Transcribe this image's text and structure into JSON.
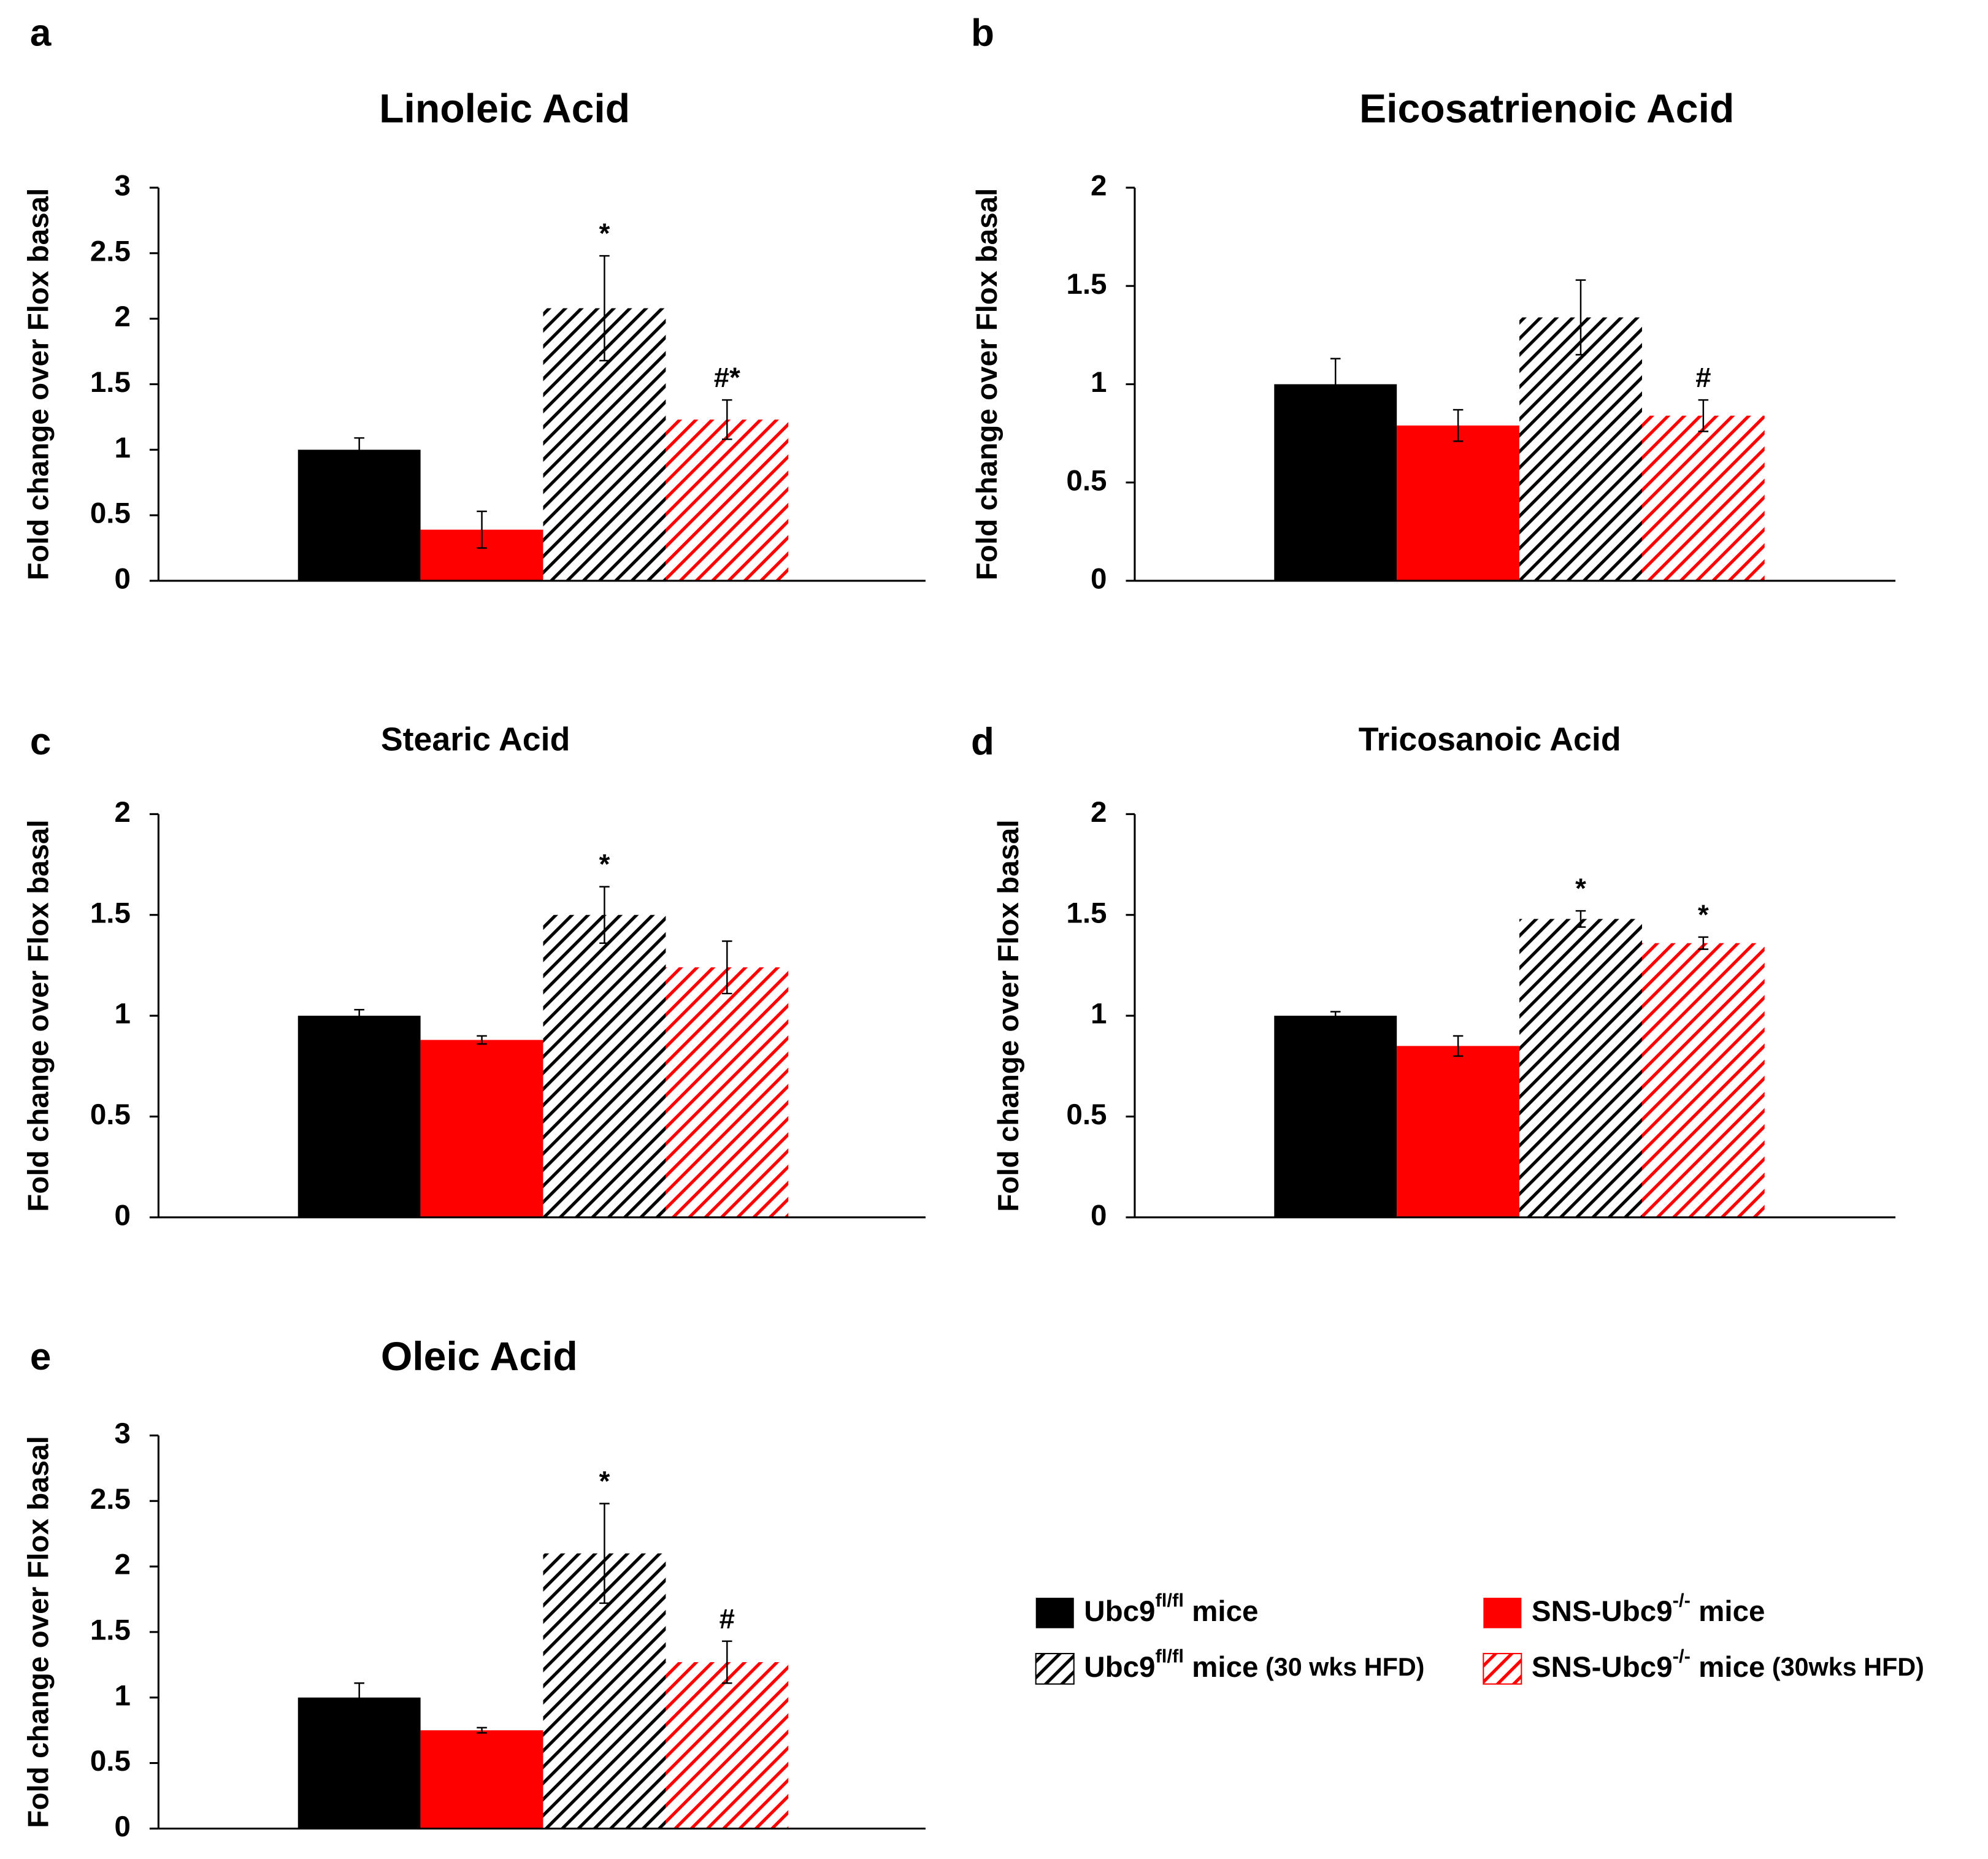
{
  "legend": {
    "entries": [
      {
        "label": "Ubc9",
        "sup": "fl/fl",
        "after": " mice",
        "color": "#000000",
        "hatched": false
      },
      {
        "label": "SNS-Ubc9",
        "sup": "-/-",
        "after": " mice",
        "color": "#ff0000",
        "hatched": false
      },
      {
        "label": "Ubc9",
        "sup": "fl/fl",
        "after": " mice",
        "note": " (30 wks HFD)",
        "color": "#000000",
        "hatched": true
      },
      {
        "label": "SNS-Ubc9",
        "sup": "-/-",
        "after": " mice",
        "note": " (30wks HFD)",
        "color": "#ff0000",
        "hatched": true
      }
    ]
  },
  "chart_data": [
    {
      "type": "bar",
      "panel": "a",
      "title": "Linoleic Acid",
      "y_label": "Fold change over Flox basal",
      "values": [
        1.0,
        0.39,
        2.08,
        1.23
      ],
      "errors": [
        0.09,
        0.14,
        0.4,
        0.15
      ],
      "annotations": [
        null,
        null,
        "*",
        "#*"
      ],
      "ylim": [
        0,
        3
      ],
      "yticks": [
        0,
        0.5,
        1,
        1.5,
        2,
        2.5,
        3
      ]
    },
    {
      "type": "bar",
      "panel": "b",
      "title": "Eicosatrienoic Acid",
      "y_label": "Fold change over Flox basal",
      "values": [
        1.0,
        0.79,
        1.34,
        0.84
      ],
      "errors": [
        0.13,
        0.08,
        0.19,
        0.08
      ],
      "annotations": [
        null,
        null,
        null,
        "#"
      ],
      "ylim": [
        0,
        2
      ],
      "yticks": [
        0,
        0.5,
        1,
        1.5,
        2
      ]
    },
    {
      "type": "bar",
      "panel": "c",
      "title": "Stearic Acid",
      "y_label": "Fold change over Flox basal",
      "values": [
        1.0,
        0.88,
        1.5,
        1.24
      ],
      "errors": [
        0.03,
        0.02,
        0.14,
        0.13
      ],
      "annotations": [
        null,
        null,
        "*",
        null
      ],
      "ylim": [
        0,
        2
      ],
      "yticks": [
        0,
        0.5,
        1,
        1.5,
        2
      ]
    },
    {
      "type": "bar",
      "panel": "d",
      "title": "Tricosanoic Acid",
      "y_label": "Fold change over Flox basal",
      "values": [
        1.0,
        0.85,
        1.48,
        1.36
      ],
      "errors": [
        0.02,
        0.05,
        0.04,
        0.03
      ],
      "annotations": [
        null,
        null,
        "*",
        "*"
      ],
      "ylim": [
        0,
        2
      ],
      "yticks": [
        0,
        0.5,
        1,
        1.5,
        2
      ]
    },
    {
      "type": "bar",
      "panel": "e",
      "title": "Oleic Acid",
      "y_label": "Fold change over Flox basal",
      "values": [
        1.0,
        0.75,
        2.1,
        1.27
      ],
      "errors": [
        0.11,
        0.02,
        0.38,
        0.16
      ],
      "annotations": [
        null,
        null,
        "*",
        "#"
      ],
      "ylim": [
        0,
        3
      ],
      "yticks": [
        0,
        0.5,
        1,
        1.5,
        2,
        2.5,
        3
      ]
    }
  ]
}
